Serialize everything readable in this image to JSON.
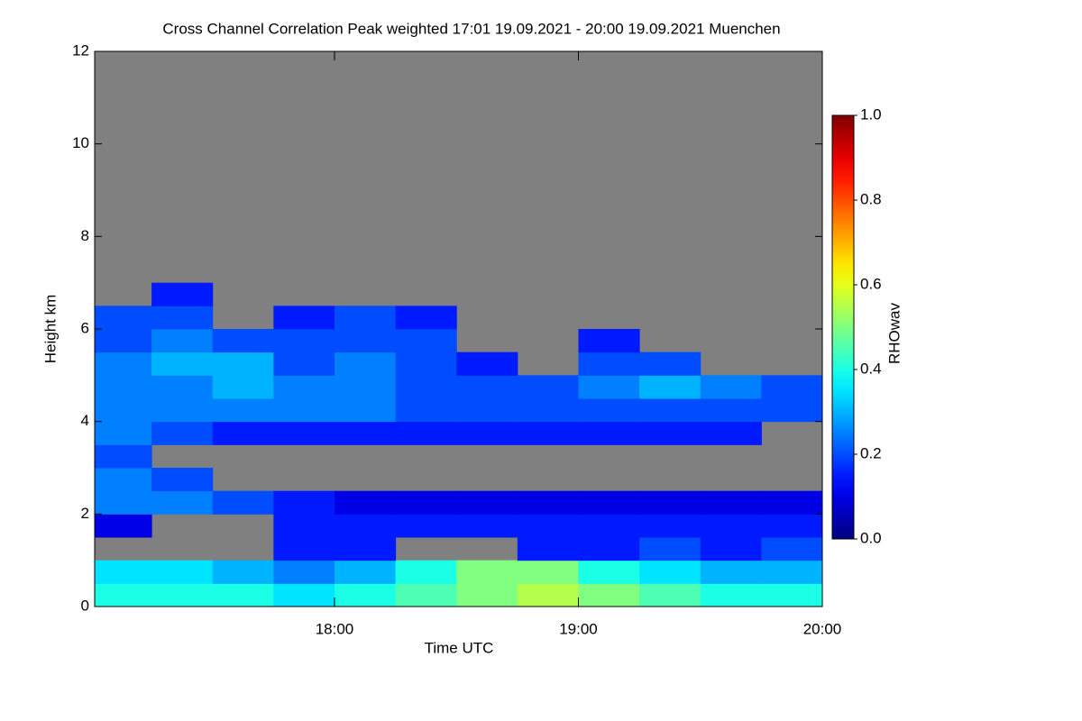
{
  "chart_data": {
    "type": "heatmap",
    "title": "Cross Channel Correlation Peak weighted   17:01 19.09.2021 - 20:00 19.09.2021 Muenchen",
    "x_label": "Time UTC",
    "y_label": "Height km",
    "xlim": [
      17.0167,
      20.0
    ],
    "xticks": [
      {
        "value": 18,
        "label": "18:00"
      },
      {
        "value": 19,
        "label": "19:00"
      },
      {
        "value": 20,
        "label": "20:00"
      }
    ],
    "ylim": [
      0,
      12
    ],
    "yticks": [
      0,
      2,
      4,
      6,
      8,
      10,
      12
    ],
    "x": [
      17.125,
      17.375,
      17.625,
      17.875,
      18.125,
      18.375,
      18.625,
      18.875,
      19.125,
      19.375,
      19.625,
      19.875
    ],
    "y": [
      0.25,
      0.75,
      1.25,
      1.75,
      2.25,
      2.75,
      3.25,
      3.75,
      4.25,
      4.75,
      5.25,
      5.75,
      6.25,
      6.75
    ],
    "z": [
      [
        0.4,
        0.4,
        0.4,
        0.35,
        0.4,
        0.45,
        0.5,
        0.55,
        0.5,
        0.45,
        0.4,
        0.4
      ],
      [
        0.35,
        0.35,
        0.3,
        0.25,
        0.3,
        0.4,
        0.5,
        0.5,
        0.4,
        0.35,
        0.3,
        0.3
      ],
      [
        null,
        null,
        null,
        0.15,
        0.15,
        null,
        null,
        0.15,
        0.15,
        0.2,
        0.15,
        0.2
      ],
      [
        0.1,
        null,
        null,
        0.15,
        0.15,
        0.15,
        0.15,
        0.15,
        0.15,
        0.15,
        0.15,
        0.15
      ],
      [
        0.25,
        0.25,
        0.2,
        0.15,
        0.1,
        0.1,
        0.1,
        0.1,
        0.1,
        0.1,
        0.1,
        0.1
      ],
      [
        0.25,
        0.2,
        null,
        null,
        null,
        null,
        null,
        null,
        null,
        null,
        null,
        null
      ],
      [
        0.2,
        null,
        null,
        null,
        null,
        null,
        null,
        null,
        null,
        null,
        null,
        null
      ],
      [
        0.25,
        0.2,
        0.15,
        0.15,
        0.15,
        0.15,
        0.15,
        0.15,
        0.15,
        0.15,
        0.15,
        null
      ],
      [
        0.25,
        0.25,
        0.25,
        0.25,
        0.25,
        0.2,
        0.2,
        0.2,
        0.2,
        0.2,
        0.2,
        0.2
      ],
      [
        0.25,
        0.25,
        0.3,
        0.25,
        0.25,
        0.2,
        0.2,
        0.2,
        0.25,
        0.3,
        0.25,
        0.2
      ],
      [
        0.25,
        0.3,
        0.3,
        0.2,
        0.25,
        0.2,
        0.15,
        null,
        0.2,
        0.2,
        null,
        null
      ],
      [
        0.2,
        0.25,
        0.2,
        0.2,
        0.2,
        0.2,
        null,
        null,
        0.15,
        null,
        null,
        null
      ],
      [
        0.2,
        0.2,
        null,
        0.15,
        0.2,
        0.15,
        null,
        null,
        null,
        null,
        null,
        null
      ],
      [
        null,
        0.15,
        null,
        null,
        null,
        null,
        null,
        null,
        null,
        null,
        null,
        null
      ]
    ],
    "colorbar": {
      "label": "RHOwav",
      "zlim": [
        0,
        1
      ],
      "ticks": [
        {
          "value": 0,
          "label": "0.0"
        },
        {
          "value": 0.2,
          "label": "0.2"
        },
        {
          "value": 0.4,
          "label": "0.4"
        },
        {
          "value": 0.6,
          "label": "0.6"
        },
        {
          "value": 0.8,
          "label": "0.8"
        },
        {
          "value": 1,
          "label": "1.0"
        }
      ]
    },
    "colormap": "jet",
    "missing_color": "#808080"
  }
}
